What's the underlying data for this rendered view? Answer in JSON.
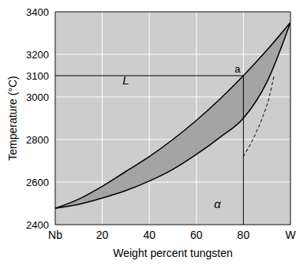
{
  "chart_data": {
    "type": "phase_diagram",
    "xlabel": "Weight percent tungsten",
    "ylabel": "Temperature (°C)",
    "xlim": [
      0,
      100
    ],
    "ylim": [
      2400,
      3400
    ],
    "xticks": [
      {
        "value": 0,
        "label": "Nb"
      },
      20,
      40,
      60,
      80,
      {
        "value": 100,
        "label": "W"
      }
    ],
    "yticks": [
      2400,
      2600,
      2800,
      3000,
      3100,
      3200,
      3400
    ],
    "grid": true,
    "series": [
      {
        "type": "range_area",
        "x": [
          0,
          10,
          20,
          30,
          40,
          50,
          60,
          70,
          80,
          90,
          100
        ],
        "low": [
          2477,
          2495,
          2525,
          2560,
          2605,
          2660,
          2730,
          2810,
          2900,
          3070,
          3350
        ],
        "high": [
          2477,
          2520,
          2580,
          2650,
          2720,
          2800,
          2890,
          2990,
          3100,
          3220,
          3350
        ],
        "color": "#a4a4a4"
      },
      {
        "type": "line",
        "x": [
          80,
          84,
          88,
          91,
          93
        ],
        "values": [
          2720,
          2800,
          2900,
          3000,
          3100
        ],
        "color": "#000000",
        "line_style": "dashed"
      }
    ],
    "point": {
      "label": "a",
      "x": 80,
      "y": 3100
    },
    "annotations": [
      {
        "text": "L",
        "x": 30,
        "y": 3080
      },
      {
        "text": "α",
        "x": 69,
        "y": 2500
      }
    ]
  }
}
